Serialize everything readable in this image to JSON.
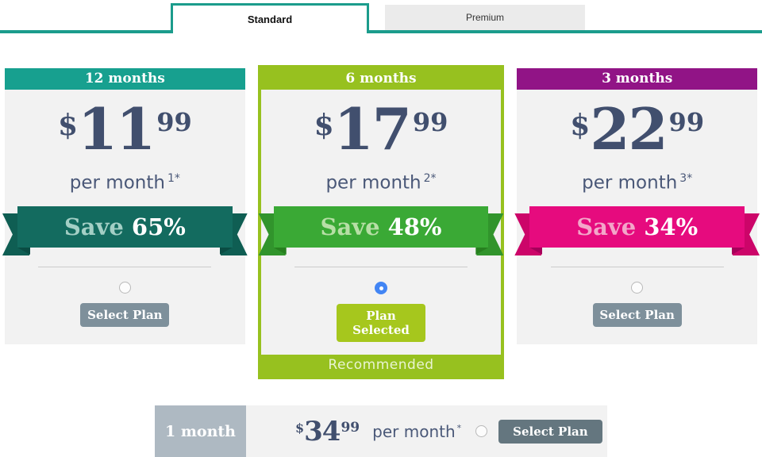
{
  "tabs": [
    {
      "label": "Standard",
      "active": true
    },
    {
      "label": "Premium",
      "active": false
    }
  ],
  "plans": [
    {
      "duration": "12 months",
      "currency": "$",
      "price_whole": "11",
      "price_cents": "99",
      "per_month_label": "per month",
      "footnote": "1*",
      "save_word": "Save",
      "save_value": "65%",
      "button_label": "Select Plan",
      "selected": false,
      "colors": {
        "header": "#17a08f",
        "ribbon": "#136b5f",
        "save_text": "#a3cfc5",
        "button": "#7e909b"
      }
    },
    {
      "duration": "6 months",
      "currency": "$",
      "price_whole": "17",
      "price_cents": "99",
      "per_month_label": "per month",
      "footnote": "2*",
      "save_word": "Save",
      "save_value": "48%",
      "button_label": "Plan Selected",
      "selected": true,
      "recommended_label": "Recommended",
      "colors": {
        "header": "#97c11f",
        "ribbon": "#3aa935",
        "save_text": "#b7dfa6",
        "button": "#a6c71d",
        "border": "#97c11f"
      }
    },
    {
      "duration": "3 months",
      "currency": "$",
      "price_whole": "22",
      "price_cents": "99",
      "per_month_label": "per month",
      "footnote": "3*",
      "save_word": "Save",
      "save_value": "34%",
      "button_label": "Select Plan",
      "selected": false,
      "colors": {
        "header": "#911486",
        "ribbon": "#e60b7e",
        "save_text": "#f3a6c9",
        "button": "#7e909b"
      }
    }
  ],
  "bottom_plan": {
    "duration": "1 month",
    "currency": "$",
    "price_whole": "34",
    "price_cents": "99",
    "per_month_label": "per month",
    "footnote": "*",
    "button_label": "Select Plan",
    "selected": false,
    "colors": {
      "duration_bg": "#aeb9c2",
      "button": "#64767f"
    }
  },
  "accent_colors": {
    "tab_line": "#1b9c8c",
    "price_text": "#414f6e",
    "radio_selected": "#4285f4"
  }
}
